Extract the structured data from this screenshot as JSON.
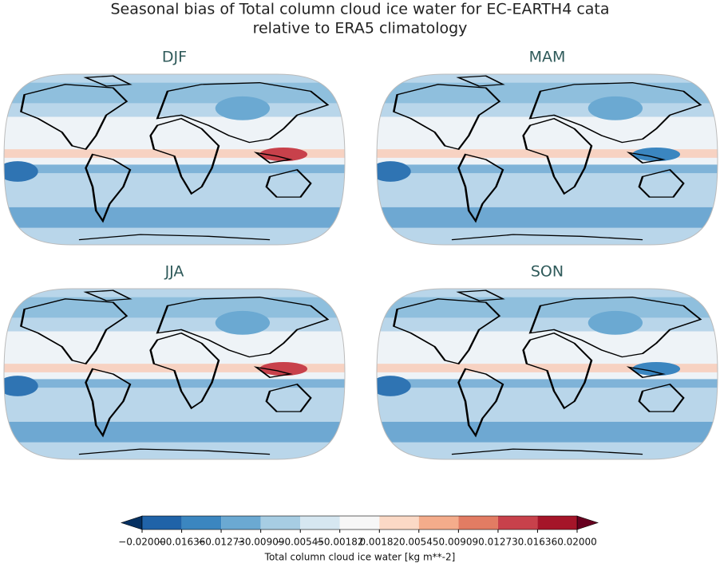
{
  "title_lines": [
    "Seasonal bias of Total column cloud ice water for EC-EARTH4 cata",
    "relative to ERA5 climatology"
  ],
  "panels": [
    "DJF",
    "MAM",
    "JJA",
    "SON"
  ],
  "colorbar": {
    "label": "Total column cloud ice water [kg m**-2]",
    "lim": [
      -0.02,
      0.02
    ],
    "ticks": [
      {
        "value": -0.02,
        "label": "−0.02000"
      },
      {
        "value": -0.01636,
        "label": "−0.01636"
      },
      {
        "value": -0.01273,
        "label": "−0.01273"
      },
      {
        "value": -0.00909,
        "label": "−0.00909"
      },
      {
        "value": -0.00545,
        "label": "−0.00545"
      },
      {
        "value": -0.00182,
        "label": "−0.00182"
      },
      {
        "value": 0.00182,
        "label": "0.00182"
      },
      {
        "value": 0.00545,
        "label": "0.00545"
      },
      {
        "value": 0.00909,
        "label": "0.00909"
      },
      {
        "value": 0.01273,
        "label": "0.01273"
      },
      {
        "value": 0.01636,
        "label": "0.01636"
      },
      {
        "value": 0.02,
        "label": "0.02000"
      }
    ],
    "colors": [
      "#2063a8",
      "#3b86c0",
      "#6ba9d2",
      "#a7cde3",
      "#d6e7f1",
      "#f7f7f7",
      "#fbd9c6",
      "#f4ac8b",
      "#e27c63",
      "#c8414b",
      "#a51529"
    ],
    "extend_colors": [
      "#053061",
      "#67001f"
    ]
  }
}
